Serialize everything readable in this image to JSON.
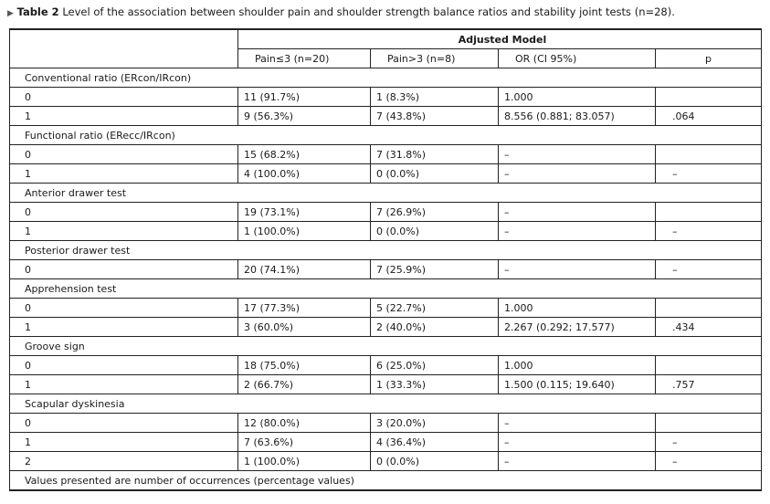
{
  "caption": {
    "marker": "▶",
    "label": "Table 2",
    "text": "Level of the association between shoulder pain and shoulder strength balance ratios and stability joint tests (n=28)."
  },
  "header": {
    "model": "Adjusted Model",
    "columns": [
      "Pain≤3 (n=20)",
      "Pain>3 (n=8)",
      "OR (CI 95%)",
      "p"
    ]
  },
  "groups": [
    {
      "name": "Conventional ratio (ERcon/IRcon)",
      "rows": [
        {
          "level": "0",
          "low": "11 (91.7%)",
          "high": "1 (8.3%)",
          "or": "1.000",
          "p": ""
        },
        {
          "level": "1",
          "low": "9 (56.3%)",
          "high": "7 (43.8%)",
          "or": "8.556 (0.881; 83.057)",
          "p": ".064"
        }
      ]
    },
    {
      "name": "Functional ratio (ERecc/IRcon)",
      "rows": [
        {
          "level": "0",
          "low": "15 (68.2%)",
          "high": "7 (31.8%)",
          "or": "–",
          "p": ""
        },
        {
          "level": "1",
          "low": "4 (100.0%)",
          "high": "0 (0.0%)",
          "or": "–",
          "p": "–"
        }
      ]
    },
    {
      "name": "Anterior drawer test",
      "rows": [
        {
          "level": "0",
          "low": "19 (73.1%)",
          "high": "7 (26.9%)",
          "or": "–",
          "p": ""
        },
        {
          "level": "1",
          "low": "1 (100.0%)",
          "high": "0 (0.0%)",
          "or": "–",
          "p": "–"
        }
      ]
    },
    {
      "name": "Posterior drawer test",
      "rows": [
        {
          "level": "0",
          "low": "20 (74.1%)",
          "high": "7 (25.9%)",
          "or": "–",
          "p": "–"
        }
      ]
    },
    {
      "name": "Apprehension test",
      "rows": [
        {
          "level": "0",
          "low": "17 (77.3%)",
          "high": "5 (22.7%)",
          "or": "1.000",
          "p": ""
        },
        {
          "level": "1",
          "low": "3 (60.0%)",
          "high": "2 (40.0%)",
          "or": "2.267 (0.292; 17.577)",
          "p": ".434"
        }
      ]
    },
    {
      "name": "Groove sign",
      "rows": [
        {
          "level": "0",
          "low": "18 (75.0%)",
          "high": "6 (25.0%)",
          "or": "1.000",
          "p": ""
        },
        {
          "level": "1",
          "low": "2 (66.7%)",
          "high": "1 (33.3%)",
          "or": "1.500 (0.115; 19.640)",
          "p": ".757"
        }
      ]
    },
    {
      "name": "Scapular dyskinesia",
      "rows": [
        {
          "level": "0",
          "low": "12 (80.0%)",
          "high": "3 (20.0%)",
          "or": "–",
          "p": ""
        },
        {
          "level": "1",
          "low": "7 (63.6%)",
          "high": "4 (36.4%)",
          "or": "–",
          "p": "–"
        },
        {
          "level": "2",
          "low": "1 (100.0%)",
          "high": "0 (0.0%)",
          "or": "–",
          "p": "–"
        }
      ]
    }
  ],
  "footnote": "Values presented are number of occurrences (percentage values)"
}
